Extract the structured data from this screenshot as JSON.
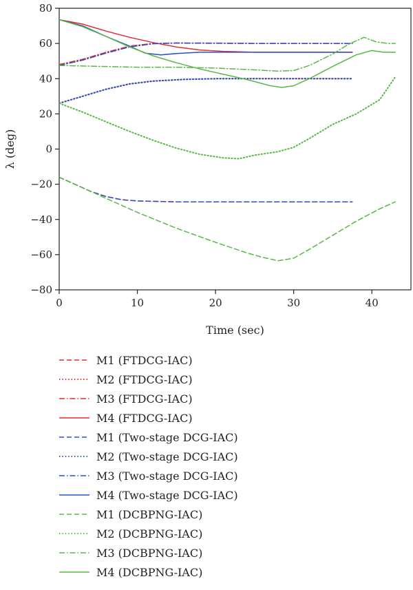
{
  "chart_data": {
    "type": "line",
    "xlabel": "Time (sec)",
    "ylabel": "λ (deg)",
    "xlim": [
      0,
      45
    ],
    "ylim": [
      -80,
      80
    ],
    "xticks": [
      0,
      10,
      20,
      30,
      40
    ],
    "yticks": [
      80,
      60,
      40,
      20,
      0,
      -20,
      -40,
      -60,
      -80
    ],
    "grid": false,
    "legend_placement": "below plot",
    "colors": {
      "FTDCG-IAC": "#e8282b",
      "Two-stage DCG-IAC": "#2c4ec9",
      "DCBPNG-IAC": "#58b846"
    },
    "series": [
      {
        "name": "M1 (FTDCG-IAC)",
        "style": "dashed",
        "color": "#e8282b",
        "points": [
          [
            0,
            -16
          ],
          [
            2,
            -20
          ],
          [
            4,
            -24
          ],
          [
            6,
            -27
          ],
          [
            8,
            -28.8
          ],
          [
            10,
            -29.5
          ],
          [
            15,
            -30
          ],
          [
            20,
            -30
          ],
          [
            25,
            -30
          ],
          [
            30,
            -30
          ],
          [
            37.5,
            -30
          ]
        ]
      },
      {
        "name": "M2 (FTDCG-IAC)",
        "style": "dotted",
        "color": "#e8282b",
        "points": [
          [
            0,
            26
          ],
          [
            3,
            30
          ],
          [
            6,
            34
          ],
          [
            9,
            37
          ],
          [
            12,
            38.6
          ],
          [
            16,
            39.6
          ],
          [
            20,
            40
          ],
          [
            25,
            40
          ],
          [
            30,
            40
          ],
          [
            37.5,
            40
          ]
        ]
      },
      {
        "name": "M3 (FTDCG-IAC)",
        "style": "dashdot",
        "color": "#e8282b",
        "points": [
          [
            0,
            48
          ],
          [
            3,
            51
          ],
          [
            6,
            55
          ],
          [
            9,
            58.5
          ],
          [
            12,
            60
          ],
          [
            15,
            60.3
          ],
          [
            20,
            60.2
          ],
          [
            25,
            60
          ],
          [
            30,
            60
          ],
          [
            37.5,
            60
          ]
        ]
      },
      {
        "name": "M4 (FTDCG-IAC)",
        "style": "solid",
        "color": "#e8282b",
        "points": [
          [
            0,
            73.5
          ],
          [
            3,
            71
          ],
          [
            6,
            67
          ],
          [
            9,
            63.5
          ],
          [
            12,
            60.5
          ],
          [
            15,
            58
          ],
          [
            18,
            56.3
          ],
          [
            21,
            55.5
          ],
          [
            25,
            55
          ],
          [
            30,
            55
          ],
          [
            37.5,
            55
          ]
        ]
      },
      {
        "name": "M1 (Two-stage DCG-IAC)",
        "style": "dashed",
        "color": "#2c4ec9",
        "points": [
          [
            0,
            -16
          ],
          [
            2,
            -20
          ],
          [
            4,
            -24
          ],
          [
            6,
            -27
          ],
          [
            8,
            -28.8
          ],
          [
            10,
            -29.5
          ],
          [
            15,
            -30
          ],
          [
            20,
            -30
          ],
          [
            25,
            -30
          ],
          [
            30,
            -30
          ],
          [
            37.5,
            -30
          ]
        ]
      },
      {
        "name": "M2 (Two-stage DCG-IAC)",
        "style": "dotted",
        "color": "#2c4ec9",
        "points": [
          [
            0,
            26
          ],
          [
            3,
            30
          ],
          [
            6,
            34
          ],
          [
            9,
            37
          ],
          [
            12,
            38.6
          ],
          [
            16,
            39.6
          ],
          [
            20,
            40
          ],
          [
            25,
            40
          ],
          [
            30,
            40
          ],
          [
            37.5,
            40
          ]
        ]
      },
      {
        "name": "M3 (Two-stage DCG-IAC)",
        "style": "dashdot",
        "color": "#2c4ec9",
        "points": [
          [
            0,
            47.5
          ],
          [
            3,
            50.5
          ],
          [
            6,
            54.5
          ],
          [
            9,
            58
          ],
          [
            12,
            59.8
          ],
          [
            15,
            60.2
          ],
          [
            20,
            60.1
          ],
          [
            25,
            60
          ],
          [
            30,
            60
          ],
          [
            37.5,
            60
          ]
        ]
      },
      {
        "name": "M4 (Two-stage DCG-IAC)",
        "style": "solid",
        "color": "#2c4ec9",
        "points": [
          [
            0,
            73.5
          ],
          [
            3,
            70
          ],
          [
            6,
            64
          ],
          [
            9,
            58.5
          ],
          [
            11,
            54.5
          ],
          [
            13,
            53.5
          ],
          [
            15,
            54.3
          ],
          [
            18,
            55
          ],
          [
            22,
            55
          ],
          [
            30,
            55
          ],
          [
            37.5,
            55
          ]
        ]
      },
      {
        "name": "M1 (DCBPNG-IAC)",
        "style": "dashed",
        "color": "#58b846",
        "points": [
          [
            0,
            -16
          ],
          [
            5,
            -26
          ],
          [
            10,
            -36
          ],
          [
            15,
            -45
          ],
          [
            20,
            -53
          ],
          [
            24,
            -59
          ],
          [
            26,
            -61.5
          ],
          [
            28,
            -63.5
          ],
          [
            30,
            -62
          ],
          [
            32,
            -57
          ],
          [
            35,
            -49
          ],
          [
            38,
            -41
          ],
          [
            41,
            -34
          ],
          [
            43,
            -30
          ]
        ]
      },
      {
        "name": "M2 (DCBPNG-IAC)",
        "style": "dotted",
        "color": "#58b846",
        "points": [
          [
            0,
            26
          ],
          [
            3,
            21
          ],
          [
            6,
            15.5
          ],
          [
            9,
            10
          ],
          [
            12,
            5
          ],
          [
            15,
            0.5
          ],
          [
            18,
            -3
          ],
          [
            21,
            -5
          ],
          [
            23,
            -5.5
          ],
          [
            25,
            -3.5
          ],
          [
            28,
            -1.5
          ],
          [
            30,
            1
          ],
          [
            32,
            6
          ],
          [
            35,
            14
          ],
          [
            38,
            20
          ],
          [
            41,
            28
          ],
          [
            43,
            41
          ]
        ]
      },
      {
        "name": "M3 (DCBPNG-IAC)",
        "style": "dashdot",
        "color": "#58b846",
        "points": [
          [
            0,
            47.5
          ],
          [
            5,
            47
          ],
          [
            10,
            46.5
          ],
          [
            15,
            46.5
          ],
          [
            20,
            46
          ],
          [
            25,
            45
          ],
          [
            28,
            44.3
          ],
          [
            30,
            44.6
          ],
          [
            32,
            47.5
          ],
          [
            35,
            54
          ],
          [
            37,
            59.5
          ],
          [
            39,
            63.5
          ],
          [
            40.5,
            61
          ],
          [
            42,
            60
          ],
          [
            43,
            60
          ]
        ]
      },
      {
        "name": "M4 (DCBPNG-IAC)",
        "style": "solid",
        "color": "#58b846",
        "points": [
          [
            0,
            73.5
          ],
          [
            3,
            69.5
          ],
          [
            6,
            64
          ],
          [
            9,
            58
          ],
          [
            12,
            53
          ],
          [
            15,
            49
          ],
          [
            18,
            45.5
          ],
          [
            21,
            42.5
          ],
          [
            24,
            39.5
          ],
          [
            27,
            36
          ],
          [
            28.5,
            35
          ],
          [
            30,
            36
          ],
          [
            32,
            40
          ],
          [
            35,
            47
          ],
          [
            38,
            53.5
          ],
          [
            40,
            56
          ],
          [
            41.5,
            55
          ],
          [
            43,
            55
          ]
        ]
      }
    ]
  }
}
